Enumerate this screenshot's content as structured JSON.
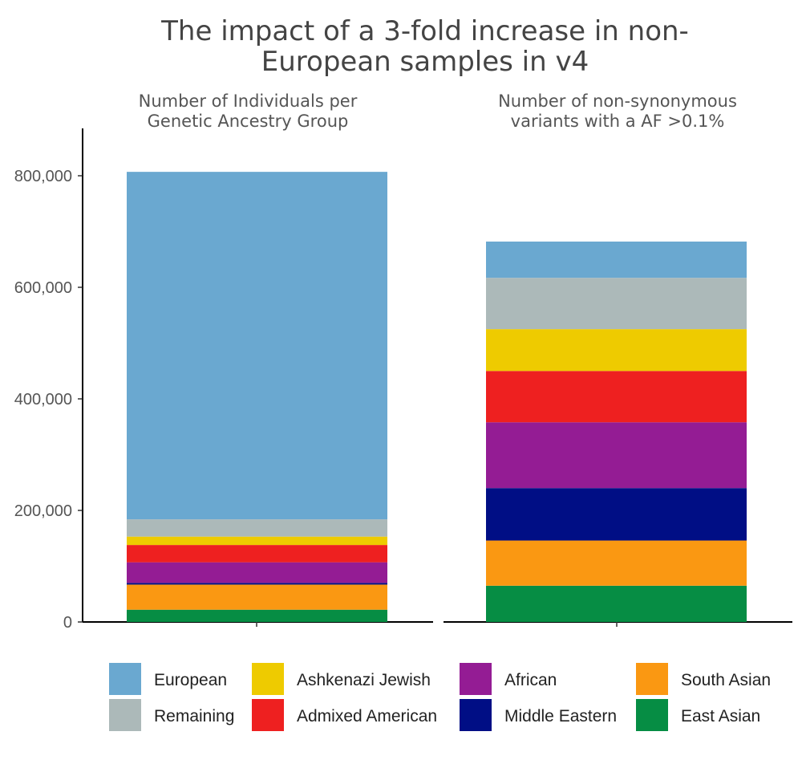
{
  "chart_data": {
    "type": "bar",
    "stacked": true,
    "title_lines": [
      "The impact of a 3-fold increase in non-",
      "European samples in v4"
    ],
    "y_ticks": [
      {
        "value": 0,
        "label": "0"
      },
      {
        "value": 200000,
        "label": "200,000"
      },
      {
        "value": 400000,
        "label": "400,000"
      },
      {
        "value": 600000,
        "label": "600,000"
      },
      {
        "value": 800000,
        "label": "800,000"
      }
    ],
    "ylim": [
      0,
      880000
    ],
    "legend_position": "bottom",
    "legend": [
      {
        "name": "European",
        "color": "#6aa8d0"
      },
      {
        "name": "Remaining",
        "color": "#acb9b9"
      },
      {
        "name": "Ashkenazi Jewish",
        "color": "#eecb00"
      },
      {
        "name": "Admixed American",
        "color": "#ee2020"
      },
      {
        "name": "African",
        "color": "#941c94"
      },
      {
        "name": "Middle Eastern",
        "color": "#000e85"
      },
      {
        "name": "South Asian",
        "color": "#fa9812"
      },
      {
        "name": "East Asian",
        "color": "#068d44"
      }
    ],
    "panels": [
      {
        "title_lines": [
          "Number of Individuals per",
          "Genetic Ancestry Group"
        ],
        "segments": [
          {
            "name": "East Asian",
            "value": 22000
          },
          {
            "name": "South Asian",
            "value": 45000
          },
          {
            "name": "Middle Eastern",
            "value": 3000
          },
          {
            "name": "African",
            "value": 37000
          },
          {
            "name": "Admixed American",
            "value": 31000
          },
          {
            "name": "Ashkenazi Jewish",
            "value": 15000
          },
          {
            "name": "Remaining",
            "value": 31000
          },
          {
            "name": "European",
            "value": 623000
          }
        ]
      },
      {
        "title_lines": [
          "Number of non-synonymous",
          "variants with a AF >0.1%"
        ],
        "segments": [
          {
            "name": "East Asian",
            "value": 65000
          },
          {
            "name": "South Asian",
            "value": 81000
          },
          {
            "name": "Middle Eastern",
            "value": 94000
          },
          {
            "name": "African",
            "value": 118000
          },
          {
            "name": "Admixed American",
            "value": 92000
          },
          {
            "name": "Ashkenazi Jewish",
            "value": 75000
          },
          {
            "name": "Remaining",
            "value": 92000
          },
          {
            "name": "European",
            "value": 65000
          }
        ]
      }
    ]
  }
}
